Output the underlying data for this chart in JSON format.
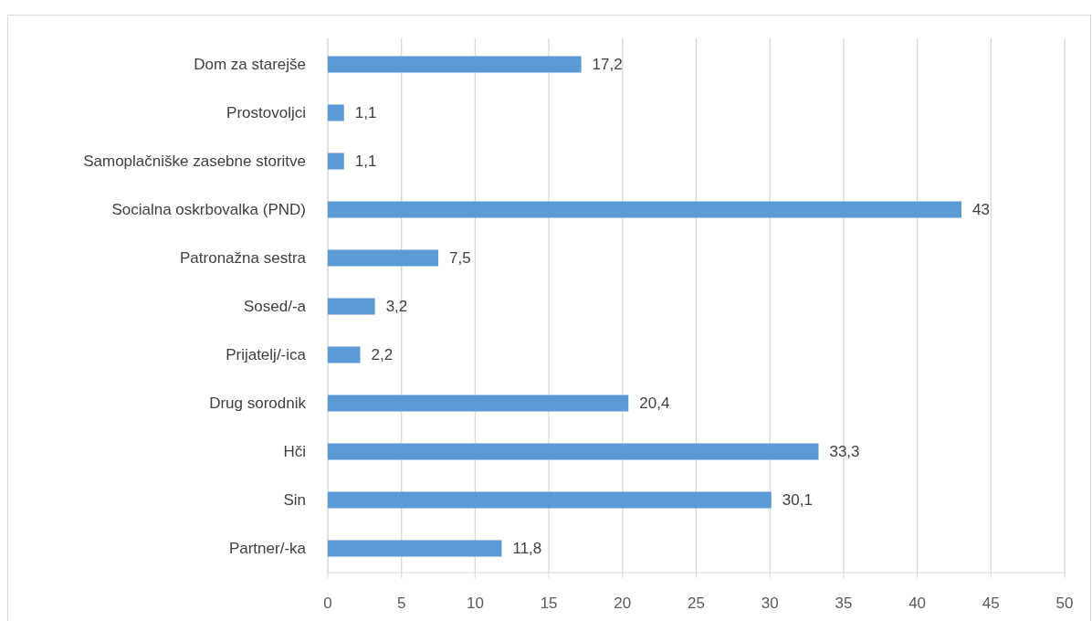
{
  "chart_data": {
    "type": "bar",
    "orientation": "horizontal",
    "categories": [
      "Dom za starejše",
      "Prostovoljci",
      "Samoplačniške zasebne storitve",
      "Socialna oskrbovalka (PND)",
      "Patronažna sestra",
      "Sosed/-a",
      "Prijatelj/-ica",
      "Drug sorodnik",
      "Hči",
      "Sin",
      "Partner/-ka"
    ],
    "values": [
      17.2,
      1.1,
      1.1,
      43,
      7.5,
      3.2,
      2.2,
      20.4,
      33.3,
      30.1,
      11.8
    ],
    "value_labels": [
      "17,2",
      "1,1",
      "1,1",
      "43",
      "7,5",
      "3,2",
      "2,2",
      "20,4",
      "33,3",
      "30,1",
      "11,8"
    ],
    "color": "#5b9bd5",
    "xlim": [
      0,
      50
    ],
    "xticks": [
      0,
      5,
      10,
      15,
      20,
      25,
      30,
      35,
      40,
      45,
      50
    ],
    "grid": "x"
  }
}
